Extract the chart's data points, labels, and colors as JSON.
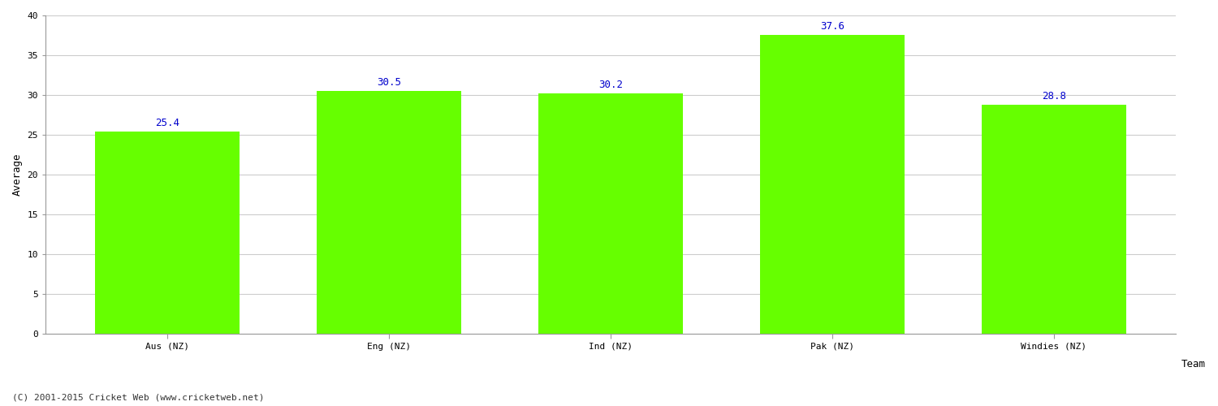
{
  "categories": [
    "Aus (NZ)",
    "Eng (NZ)",
    "Ind (NZ)",
    "Pak (NZ)",
    "Windies (NZ)"
  ],
  "values": [
    25.4,
    30.5,
    30.2,
    37.6,
    28.8
  ],
  "bar_color": "#66ff00",
  "bar_edge_color": "#aaffaa",
  "value_color": "#0000cc",
  "ylabel": "Average",
  "xlabel": "Team",
  "ylim": [
    0,
    40
  ],
  "yticks": [
    0,
    5,
    10,
    15,
    20,
    25,
    30,
    35,
    40
  ],
  "grid_color": "#cccccc",
  "bg_color": "#ffffff",
  "footer": "(C) 2001-2015 Cricket Web (www.cricketweb.net)",
  "value_fontsize": 9,
  "axis_label_fontsize": 9,
  "tick_fontsize": 8,
  "footer_fontsize": 8
}
